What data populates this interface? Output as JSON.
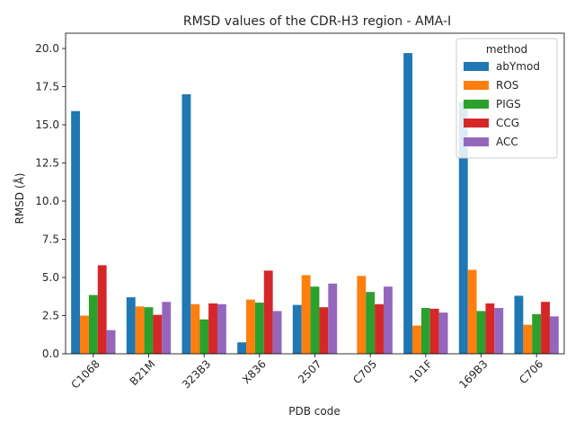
{
  "chart_data": {
    "type": "bar",
    "title": "RMSD values of the CDR-H3 region - AMA-I",
    "xlabel": "PDB code",
    "ylabel": "RMSD (Å)",
    "ylim": [
      0,
      21.0
    ],
    "yticks": [
      "0.0",
      "2.5",
      "5.0",
      "7.5",
      "10.0",
      "12.5",
      "15.0",
      "17.5",
      "20.0"
    ],
    "grid": false,
    "legend": {
      "title": "method",
      "placement": "top-right"
    },
    "categories": [
      "C1068",
      "B21M",
      "323B3",
      "X836",
      "2507",
      "C705",
      "101F",
      "169B3",
      "C706"
    ],
    "series": [
      {
        "name": "abYmod",
        "color": "#1f77b4",
        "values": [
          15.9,
          3.7,
          17.0,
          0.75,
          3.2,
          0,
          19.7,
          16.5,
          3.8
        ]
      },
      {
        "name": "ROS",
        "color": "#ff7f0e",
        "values": [
          2.5,
          3.1,
          3.25,
          3.55,
          5.15,
          5.1,
          1.85,
          5.5,
          1.9
        ]
      },
      {
        "name": "PIGS",
        "color": "#2ca02c",
        "values": [
          3.85,
          3.05,
          2.25,
          3.35,
          4.4,
          4.05,
          3.0,
          2.8,
          2.6
        ]
      },
      {
        "name": "CCG",
        "color": "#d62728",
        "values": [
          5.8,
          2.55,
          3.3,
          5.45,
          3.05,
          3.25,
          2.95,
          3.3,
          3.4
        ]
      },
      {
        "name": "ACC",
        "color": "#9467bd",
        "values": [
          1.55,
          3.4,
          3.25,
          2.8,
          4.6,
          4.4,
          2.7,
          3.0,
          2.45
        ]
      }
    ]
  }
}
